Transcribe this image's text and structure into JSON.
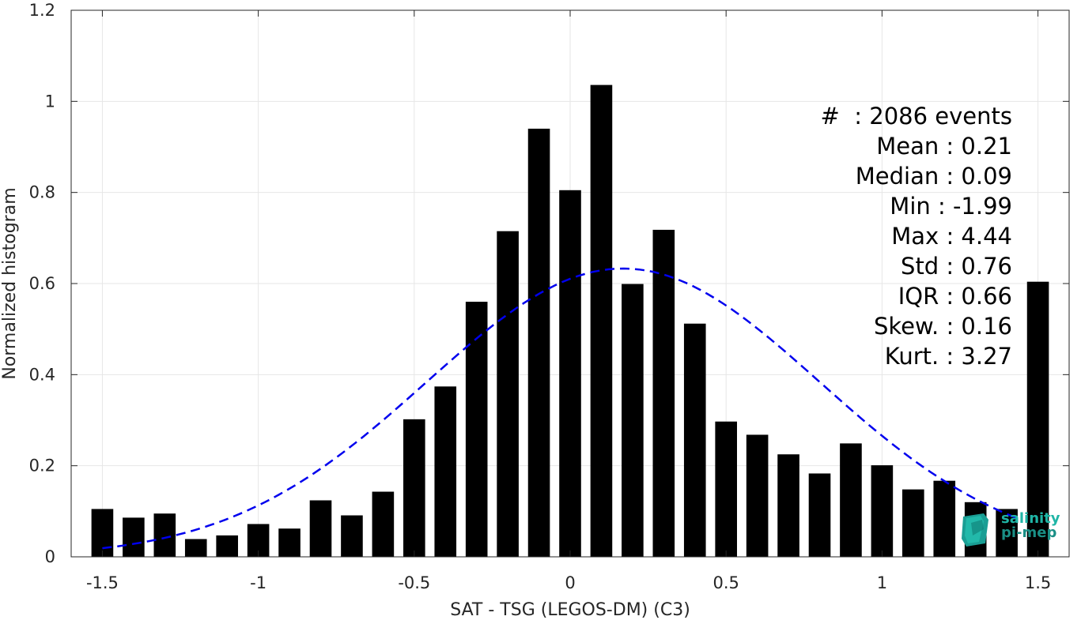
{
  "chart_data": {
    "type": "bar",
    "title": "",
    "xlabel": "SAT - TSG (LEGOS-DM) (C3)",
    "ylabel": "Normalized histogram",
    "xlim": [
      -1.6,
      1.6
    ],
    "ylim": [
      0,
      1.2
    ],
    "x_ticks": [
      "-1.5",
      "-1",
      "-0.5",
      "0",
      "0.5",
      "1",
      "1.5"
    ],
    "x_tick_values": [
      -1.5,
      -1,
      -0.5,
      0,
      0.5,
      1,
      1.5
    ],
    "y_ticks": [
      "0",
      "0.2",
      "0.4",
      "0.6",
      "0.8",
      "1",
      "1.2"
    ],
    "y_tick_values": [
      0,
      0.2,
      0.4,
      0.6,
      0.8,
      1,
      1.2
    ],
    "grid": true,
    "bar_color": "#000000",
    "bar_width": 0.07,
    "x": [
      -1.5,
      -1.4,
      -1.3,
      -1.2,
      -1.1,
      -1.0,
      -0.9,
      -0.8,
      -0.7,
      -0.6,
      -0.5,
      -0.4,
      -0.3,
      -0.2,
      -0.1,
      0.0,
      0.1,
      0.2,
      0.3,
      0.4,
      0.5,
      0.6,
      0.7,
      0.8,
      0.9,
      1.0,
      1.1,
      1.2,
      1.3,
      1.4,
      1.5
    ],
    "values": [
      0.105,
      0.086,
      0.095,
      0.039,
      0.047,
      0.072,
      0.062,
      0.124,
      0.091,
      0.143,
      0.302,
      0.374,
      0.56,
      0.715,
      0.94,
      0.805,
      1.036,
      0.599,
      0.718,
      0.512,
      0.297,
      0.268,
      0.225,
      0.183,
      0.249,
      0.201,
      0.148,
      0.167,
      0.12,
      0.105,
      0.604
    ],
    "fit_curve": {
      "type": "gaussian",
      "mean": 0.17,
      "std": 0.63,
      "peak": 0.633,
      "x_range": [
        -1.5,
        1.45
      ],
      "color": "#0000ee",
      "style": "dashed"
    }
  },
  "stats": [
    {
      "label": "#  : 2086 events",
      "pad": 0
    },
    {
      "label": "Mean : 0.21",
      "pad": 1
    },
    {
      "label": "Median : 0.09",
      "pad": 1
    },
    {
      "label": "Min : -1.99",
      "pad": 1
    },
    {
      "label": "Max : 4.44",
      "pad": 1
    },
    {
      "label": "Std : 0.76",
      "pad": 1
    },
    {
      "label": "IQR : 0.66",
      "pad": 1
    },
    {
      "label": "Skew. : 0.16",
      "pad": 0
    },
    {
      "label": "Kurt. : 3.27",
      "pad": 0
    }
  ],
  "logo": {
    "line1": "salinity",
    "line2": "pi-mep",
    "color": "#1fb5a6"
  }
}
